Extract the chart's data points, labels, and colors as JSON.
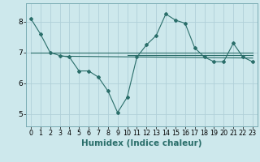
{
  "xlabel": "Humidex (Indice chaleur)",
  "bg_color": "#cde8ec",
  "grid_color": "#b0d0d8",
  "line_color": "#2a6e6a",
  "xlim": [
    -0.5,
    23.5
  ],
  "ylim": [
    4.6,
    8.6
  ],
  "yticks": [
    5,
    6,
    7,
    8
  ],
  "xticks": [
    0,
    1,
    2,
    3,
    4,
    5,
    6,
    7,
    8,
    9,
    10,
    11,
    12,
    13,
    14,
    15,
    16,
    17,
    18,
    19,
    20,
    21,
    22,
    23
  ],
  "line1_x": [
    0,
    1,
    2,
    3,
    4,
    5,
    6,
    7,
    8,
    9,
    10,
    11,
    12,
    13,
    14,
    15,
    16,
    17,
    18,
    19,
    20,
    21,
    22,
    23
  ],
  "line1_y": [
    8.1,
    7.6,
    7.0,
    6.9,
    6.85,
    6.4,
    6.4,
    6.2,
    5.75,
    5.05,
    5.55,
    6.85,
    7.25,
    7.55,
    8.25,
    8.05,
    7.95,
    7.15,
    6.85,
    6.7,
    6.7,
    7.3,
    6.85,
    6.7
  ],
  "line2_x": [
    0,
    23
  ],
  "line2_y": [
    7.0,
    7.0
  ],
  "line3_x": [
    3,
    23
  ],
  "line3_y": [
    6.88,
    6.82
  ],
  "line4_x": [
    10,
    23
  ],
  "line4_y": [
    6.92,
    6.92
  ],
  "marker_size": 2.0,
  "linewidth": 0.8,
  "tick_fontsize": 6.5,
  "xlabel_fontsize": 7.5
}
